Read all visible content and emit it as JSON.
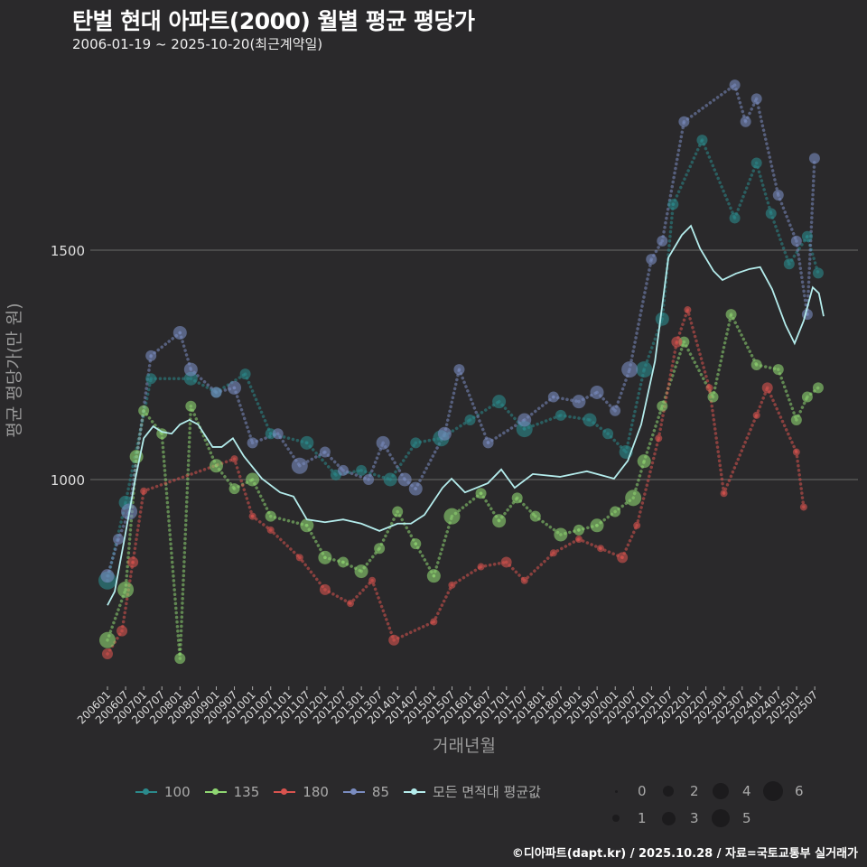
{
  "header": {
    "title": "탄벌 현대 아파트(2000) 월별 평균 평당가",
    "subtitle": "2006-01-19 ~ 2025-10-20(최근계약일)"
  },
  "footer": {
    "credit": "©디아파트(dapt.kr) / 2025.10.28 / 자료=국토교통부 실거래가"
  },
  "legend": {
    "series": [
      {
        "label": "100",
        "color": "#2b8a8c"
      },
      {
        "label": "135",
        "color": "#8fd672"
      },
      {
        "label": "180",
        "color": "#d9534f"
      },
      {
        "label": "85",
        "color": "#7a8cc0"
      },
      {
        "label": "모든 면적대 평균값",
        "color": "#b4ecec"
      }
    ],
    "sizes": [
      "0",
      "1",
      "2",
      "3",
      "4",
      "5",
      "6"
    ]
  },
  "chart_data": {
    "type": "scatter",
    "title": "탄벌 현대 아파트(2000) 월별 평균 평당가",
    "xlabel": "거래년월",
    "ylabel": "평균 평당가(만 원)",
    "ylim": [
      560,
      1920
    ],
    "xlim": [
      2005.5,
      2026.0
    ],
    "yticks": [
      1000,
      1500
    ],
    "xticks": [
      "200601",
      "200607",
      "200701",
      "200707",
      "200801",
      "200807",
      "200901",
      "200907",
      "201001",
      "201007",
      "201101",
      "201107",
      "201201",
      "201207",
      "201301",
      "201307",
      "201401",
      "201407",
      "201501",
      "201507",
      "201601",
      "201607",
      "201701",
      "201707",
      "201801",
      "201807",
      "201901",
      "201907",
      "202001",
      "202007",
      "202101",
      "202107",
      "202201",
      "202207",
      "202301",
      "202307",
      "202401",
      "202407",
      "202501",
      "202507"
    ],
    "grid": true,
    "legend_position": "bottom",
    "series": [
      {
        "name": "100",
        "color": "#2b8a8c",
        "points": [
          [
            2006.0,
            780,
            5
          ],
          [
            2006.5,
            950,
            3
          ],
          [
            2007.2,
            1220,
            2
          ],
          [
            2008.3,
            1220,
            3
          ],
          [
            2009.0,
            1190,
            2
          ],
          [
            2009.8,
            1230,
            2
          ],
          [
            2010.5,
            1100,
            2
          ],
          [
            2011.5,
            1080,
            3
          ],
          [
            2012.3,
            1010,
            2
          ],
          [
            2013.0,
            1020,
            2
          ],
          [
            2013.8,
            1000,
            3
          ],
          [
            2014.5,
            1080,
            2
          ],
          [
            2015.2,
            1090,
            4
          ],
          [
            2016.0,
            1130,
            2
          ],
          [
            2016.8,
            1170,
            3
          ],
          [
            2017.5,
            1110,
            4
          ],
          [
            2018.5,
            1140,
            2
          ],
          [
            2019.3,
            1130,
            3
          ],
          [
            2019.8,
            1100,
            2
          ],
          [
            2020.3,
            1060,
            3
          ],
          [
            2020.8,
            1240,
            4
          ],
          [
            2021.3,
            1350,
            3
          ],
          [
            2021.6,
            1600,
            2
          ],
          [
            2022.4,
            1740,
            2
          ],
          [
            2023.3,
            1570,
            2
          ],
          [
            2023.9,
            1690,
            2
          ],
          [
            2024.3,
            1580,
            2
          ],
          [
            2024.8,
            1470,
            2
          ],
          [
            2025.3,
            1530,
            2
          ],
          [
            2025.6,
            1450,
            2
          ]
        ]
      },
      {
        "name": "135",
        "color": "#8fd672",
        "points": [
          [
            2006.0,
            650,
            4
          ],
          [
            2006.5,
            760,
            4
          ],
          [
            2006.8,
            1050,
            3
          ],
          [
            2007.0,
            1150,
            2
          ],
          [
            2007.5,
            1100,
            2
          ],
          [
            2008.0,
            610,
            2
          ],
          [
            2008.3,
            1160,
            2
          ],
          [
            2009.0,
            1030,
            3
          ],
          [
            2009.5,
            980,
            2
          ],
          [
            2010.0,
            1000,
            3
          ],
          [
            2010.5,
            920,
            2
          ],
          [
            2011.5,
            900,
            3
          ],
          [
            2012.0,
            830,
            3
          ],
          [
            2012.5,
            820,
            2
          ],
          [
            2013.0,
            800,
            3
          ],
          [
            2013.5,
            850,
            2
          ],
          [
            2014.0,
            930,
            2
          ],
          [
            2014.5,
            860,
            2
          ],
          [
            2015.0,
            790,
            3
          ],
          [
            2015.5,
            920,
            4
          ],
          [
            2016.3,
            970,
            2
          ],
          [
            2016.8,
            910,
            3
          ],
          [
            2017.3,
            960,
            2
          ],
          [
            2017.8,
            920,
            2
          ],
          [
            2018.5,
            880,
            3
          ],
          [
            2019.0,
            890,
            2
          ],
          [
            2019.5,
            900,
            3
          ],
          [
            2020.0,
            930,
            2
          ],
          [
            2020.5,
            960,
            4
          ],
          [
            2020.8,
            1040,
            3
          ],
          [
            2021.3,
            1160,
            2
          ],
          [
            2021.9,
            1300,
            2
          ],
          [
            2022.7,
            1180,
            2
          ],
          [
            2023.2,
            1360,
            2
          ],
          [
            2023.9,
            1250,
            2
          ],
          [
            2024.5,
            1240,
            2
          ],
          [
            2025.0,
            1130,
            2
          ],
          [
            2025.3,
            1180,
            2
          ],
          [
            2025.6,
            1200,
            2
          ]
        ]
      },
      {
        "name": "180",
        "color": "#d9534f",
        "points": [
          [
            2006.0,
            620,
            2
          ],
          [
            2006.4,
            670,
            2
          ],
          [
            2006.7,
            820,
            2
          ],
          [
            2007.0,
            975,
            1
          ],
          [
            2009.5,
            1045,
            1
          ],
          [
            2010.0,
            920,
            1
          ],
          [
            2010.5,
            890,
            1
          ],
          [
            2011.3,
            830,
            1
          ],
          [
            2012.0,
            760,
            2
          ],
          [
            2012.7,
            730,
            1
          ],
          [
            2013.3,
            780,
            1
          ],
          [
            2013.9,
            650,
            2
          ],
          [
            2015.0,
            690,
            1
          ],
          [
            2015.5,
            770,
            1
          ],
          [
            2016.3,
            810,
            1
          ],
          [
            2017.0,
            820,
            2
          ],
          [
            2017.5,
            780,
            1
          ],
          [
            2018.3,
            840,
            1
          ],
          [
            2019.0,
            870,
            1
          ],
          [
            2019.6,
            850,
            1
          ],
          [
            2020.2,
            830,
            2
          ],
          [
            2020.6,
            900,
            1
          ],
          [
            2021.2,
            1090,
            1
          ],
          [
            2021.7,
            1300,
            2
          ],
          [
            2022.0,
            1370,
            1
          ],
          [
            2022.6,
            1200,
            1
          ],
          [
            2023.0,
            970,
            1
          ],
          [
            2023.9,
            1140,
            1
          ],
          [
            2024.2,
            1200,
            2
          ],
          [
            2025.0,
            1060,
            1
          ],
          [
            2025.2,
            940,
            1
          ]
        ]
      },
      {
        "name": "85",
        "color": "#7a8cc0",
        "points": [
          [
            2006.0,
            790,
            3
          ],
          [
            2006.3,
            870,
            2
          ],
          [
            2006.6,
            930,
            4
          ],
          [
            2007.2,
            1270,
            2
          ],
          [
            2008.0,
            1320,
            3
          ],
          [
            2008.3,
            1240,
            3
          ],
          [
            2009.0,
            1190,
            2
          ],
          [
            2009.5,
            1200,
            3
          ],
          [
            2010.0,
            1080,
            2
          ],
          [
            2010.7,
            1100,
            2
          ],
          [
            2011.3,
            1030,
            4
          ],
          [
            2012.0,
            1060,
            2
          ],
          [
            2012.5,
            1020,
            2
          ],
          [
            2013.2,
            1000,
            2
          ],
          [
            2013.6,
            1080,
            3
          ],
          [
            2014.2,
            1000,
            3
          ],
          [
            2014.5,
            980,
            3
          ],
          [
            2015.3,
            1100,
            3
          ],
          [
            2015.7,
            1240,
            2
          ],
          [
            2016.5,
            1080,
            2
          ],
          [
            2017.5,
            1130,
            3
          ],
          [
            2018.3,
            1180,
            2
          ],
          [
            2019.0,
            1170,
            3
          ],
          [
            2019.5,
            1190,
            3
          ],
          [
            2020.0,
            1150,
            2
          ],
          [
            2020.4,
            1240,
            4
          ],
          [
            2021.0,
            1480,
            2
          ],
          [
            2021.3,
            1520,
            2
          ],
          [
            2021.9,
            1780,
            2
          ],
          [
            2023.3,
            1860,
            2
          ],
          [
            2023.6,
            1780,
            2
          ],
          [
            2023.9,
            1830,
            2
          ],
          [
            2024.5,
            1620,
            2
          ],
          [
            2025.0,
            1520,
            2
          ],
          [
            2025.3,
            1360,
            2
          ],
          [
            2025.5,
            1700,
            2
          ]
        ]
      }
    ],
    "average": {
      "name": "모든 면적대 평균값",
      "color": "#b4ecec",
      "points": [
        [
          2006.0,
          726
        ],
        [
          2006.2,
          756
        ],
        [
          2006.5,
          884
        ],
        [
          2006.77,
          1002
        ],
        [
          2007.0,
          1090
        ],
        [
          2007.26,
          1116
        ],
        [
          2007.5,
          1104
        ],
        [
          2007.77,
          1100
        ],
        [
          2008.0,
          1120
        ],
        [
          2008.26,
          1130
        ],
        [
          2008.5,
          1120
        ],
        [
          2008.9,
          1071
        ],
        [
          2009.15,
          1071
        ],
        [
          2009.46,
          1090
        ],
        [
          2009.76,
          1051
        ],
        [
          2010.26,
          1002
        ],
        [
          2010.76,
          972
        ],
        [
          2011.13,
          963
        ],
        [
          2011.5,
          913
        ],
        [
          2012.0,
          907
        ],
        [
          2012.5,
          913
        ],
        [
          2013.0,
          904
        ],
        [
          2013.5,
          888
        ],
        [
          2014.0,
          904
        ],
        [
          2014.37,
          904
        ],
        [
          2014.74,
          923
        ],
        [
          2015.24,
          982
        ],
        [
          2015.49,
          1002
        ],
        [
          2015.86,
          972
        ],
        [
          2016.49,
          992
        ],
        [
          2016.86,
          1022
        ],
        [
          2017.23,
          982
        ],
        [
          2017.73,
          1012
        ],
        [
          2018.48,
          1006
        ],
        [
          2019.22,
          1018
        ],
        [
          2019.97,
          1002
        ],
        [
          2020.35,
          1041
        ],
        [
          2020.72,
          1120
        ],
        [
          2021.1,
          1258
        ],
        [
          2021.47,
          1484
        ],
        [
          2021.84,
          1533
        ],
        [
          2022.09,
          1553
        ],
        [
          2022.34,
          1504
        ],
        [
          2022.71,
          1455
        ],
        [
          2022.96,
          1435
        ],
        [
          2023.33,
          1449
        ],
        [
          2023.71,
          1459
        ],
        [
          2024.0,
          1463
        ],
        [
          2024.33,
          1415
        ],
        [
          2024.7,
          1337
        ],
        [
          2024.95,
          1297
        ],
        [
          2025.2,
          1346
        ],
        [
          2025.45,
          1419
        ],
        [
          2025.62,
          1406
        ],
        [
          2025.75,
          1356
        ]
      ]
    }
  }
}
